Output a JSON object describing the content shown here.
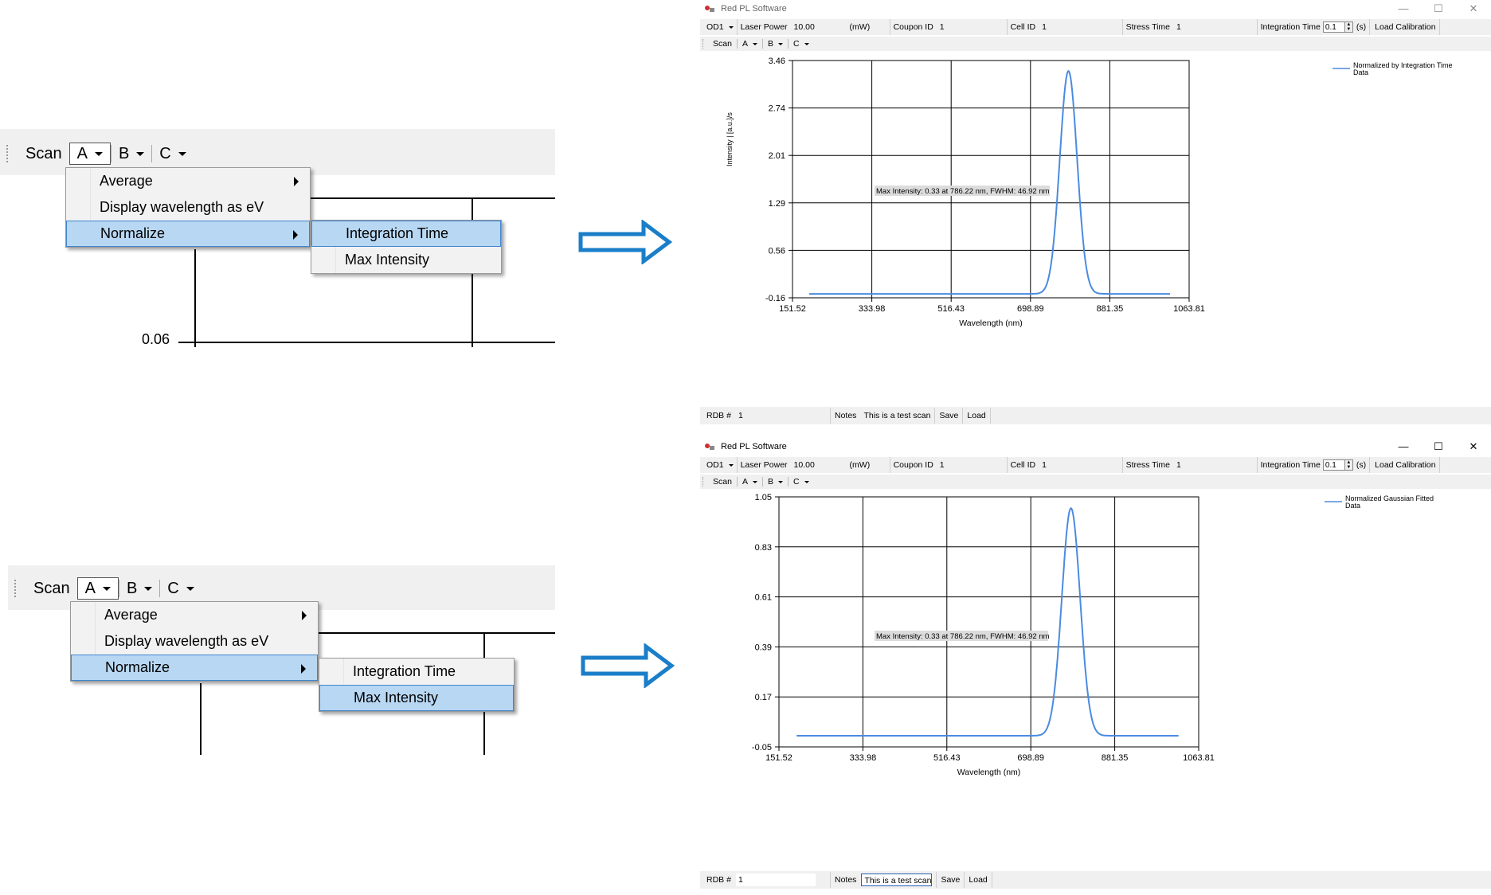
{
  "callouts": [
    {
      "toolbar": {
        "scan": "Scan",
        "a": "A",
        "b": "B",
        "c": "C"
      },
      "menu": [
        "Average",
        "Display wavelength as eV",
        "Normalize"
      ],
      "submenu": [
        "Integration Time",
        "Max Intensity"
      ],
      "highlighted_submenu": "Integration Time",
      "axis_tick": "0.06"
    },
    {
      "toolbar": {
        "scan": "Scan",
        "a": "A",
        "b": "B",
        "c": "C"
      },
      "menu": [
        "Average",
        "Display wavelength as eV",
        "Normalize"
      ],
      "submenu": [
        "Integration Time",
        "Max Intensity"
      ],
      "highlighted_submenu": "Max Intensity"
    }
  ],
  "windows": [
    {
      "title": "Red PL Software",
      "controls": {
        "minimize": "—",
        "maximize": "☐",
        "close": "✕"
      },
      "toolbar": {
        "od": "OD1",
        "laser_power_label": "Laser Power",
        "laser_power_value": "10.00",
        "laser_power_unit": "(mW)",
        "coupon_label": "Coupon ID",
        "coupon_value": "1",
        "cell_label": "Cell ID",
        "cell_value": "1",
        "stress_label": "Stress Time",
        "stress_value": "1",
        "integration_label": "Integration Time",
        "integration_value": "0.1",
        "integration_unit": "(s)",
        "load_calibration": "Load Calibration"
      },
      "menu": {
        "scan": "Scan",
        "a": "A",
        "b": "B",
        "c": "C"
      },
      "bottom": {
        "rdb_label": "RDB #",
        "rdb_value": "1",
        "notes_label": "Notes",
        "notes_value": "This is a test scan",
        "save": "Save",
        "load": "Load"
      }
    },
    {
      "title": "Red PL Software",
      "controls": {
        "minimize": "—",
        "maximize": "☐",
        "close": "✕"
      },
      "toolbar": {
        "od": "OD1",
        "laser_power_label": "Laser Power",
        "laser_power_value": "10.00",
        "laser_power_unit": "(mW)",
        "coupon_label": "Coupon ID",
        "coupon_value": "1",
        "cell_label": "Cell ID",
        "cell_value": "1",
        "stress_label": "Stress Time",
        "stress_value": "1",
        "integration_label": "Integration Time",
        "integration_value": "0.1",
        "integration_unit": "(s)",
        "load_calibration": "Load Calibration"
      },
      "menu": {
        "scan": "Scan",
        "a": "A",
        "b": "B",
        "c": "C"
      },
      "bottom": {
        "rdb_label": "RDB #",
        "rdb_value": "1",
        "notes_label": "Notes",
        "notes_value": "This is a test scan",
        "save": "Save",
        "load": "Load"
      }
    }
  ],
  "colors": {
    "series": "#4a8be0",
    "arrow": "#1a7ec8",
    "highlight": "#b8d7f3"
  },
  "chart_data": [
    {
      "type": "line",
      "xlabel": "Wavelength (nm)",
      "ylabel": "Intensity | [a.u.]/s",
      "xticks": [
        "151.52",
        "333.98",
        "516.43",
        "698.89",
        "881.35",
        "1063.81"
      ],
      "yticks": [
        "3.46",
        "2.74",
        "2.01",
        "1.29",
        "0.56",
        "-0.16"
      ],
      "xlim": [
        151.52,
        1063.81
      ],
      "ylim": [
        -0.16,
        3.46
      ],
      "grid": true,
      "legend": "top-right",
      "annotation": "Max Intensity: 0.33 at 786.22 nm, FWHM: 46.92 nm",
      "series": [
        {
          "name": "Normalized by Integration Time Data",
          "baseline": -0.1,
          "peak_x": 786.22,
          "peak_y": 3.3,
          "fwhm": 46.92,
          "x_range": [
            190,
            1020
          ]
        }
      ]
    },
    {
      "type": "line",
      "xlabel": "Wavelength (nm)",
      "ylabel": "",
      "xticks": [
        "151.52",
        "333.98",
        "516.43",
        "698.89",
        "881.35",
        "1063.81"
      ],
      "yticks": [
        "1.05",
        "0.83",
        "0.61",
        "0.39",
        "0.17",
        "-0.05"
      ],
      "xlim": [
        151.52,
        1063.81
      ],
      "ylim": [
        -0.05,
        1.05
      ],
      "grid": true,
      "legend": "top-right",
      "annotation": "Max Intensity: 0.33 at 786.22 nm, FWHM: 46.92 nm",
      "series": [
        {
          "name": "Normalized Gaussian Fitted Data",
          "baseline": -0.001,
          "peak_x": 786.22,
          "peak_y": 1.0,
          "fwhm": 46.92,
          "x_range": [
            190,
            1020
          ]
        }
      ]
    }
  ]
}
